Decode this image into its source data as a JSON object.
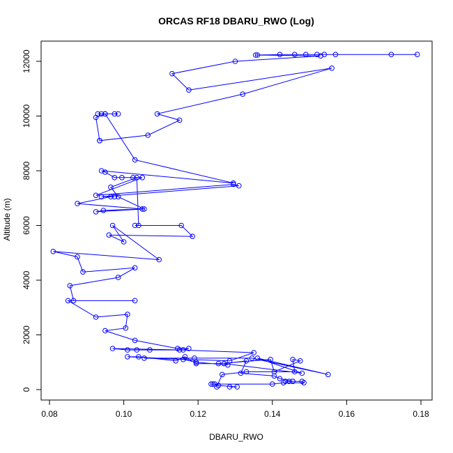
{
  "chart_data": {
    "type": "line",
    "title": "ORCAS RF18 DBARU_RWO (Log)",
    "xlabel": "DBARU_RWO",
    "ylabel": "Altitude (m)",
    "xlim": [
      0.08,
      0.18
    ],
    "ylim": [
      0,
      12000
    ],
    "x_ticks": [
      0.08,
      0.1,
      0.12,
      0.14,
      0.16,
      0.18
    ],
    "x_tick_labels": [
      "0.08",
      "0.10",
      "0.12",
      "0.14",
      "0.16",
      "0.18"
    ],
    "y_ticks": [
      0,
      2000,
      4000,
      6000,
      8000,
      10000,
      12000
    ],
    "y_tick_labels": [
      "0",
      "2000",
      "4000",
      "6000",
      "8000",
      "10000",
      "12000"
    ],
    "grid": false,
    "legend": "none",
    "series": [
      {
        "color": "#0000ff",
        "marker": "open-circle",
        "x": [
          0.179,
          0.172,
          0.157,
          0.154,
          0.152,
          0.149,
          0.146,
          0.142,
          0.136,
          0.1355,
          0.153,
          0.13,
          0.113,
          0.1175,
          0.156,
          0.132,
          0.109,
          0.115,
          0.1065,
          0.0935,
          0.0935,
          0.0925,
          0.095,
          0.0985,
          0.0975,
          0.093,
          0.094,
          0.095,
          0.103,
          0.1295,
          0.094,
          0.095,
          0.0975,
          0.0995,
          0.1025,
          0.105,
          0.0925,
          0.1295,
          0.131,
          0.094,
          0.0975,
          0.0965,
          0.0875,
          0.105,
          0.0945,
          0.0925,
          0.1055,
          0.0985,
          0.0965,
          0.1035,
          0.104,
          0.103,
          0.1155,
          0.1185,
          0.096,
          0.1,
          0.097,
          0.1095,
          0.081,
          0.0875,
          0.089,
          0.103,
          0.0985,
          0.0855,
          0.0865,
          0.103,
          0.085,
          0.0925,
          0.101,
          0.1005,
          0.095,
          0.103,
          0.1145,
          0.1175,
          0.116,
          0.097,
          0.101,
          0.107,
          0.1035,
          0.115,
          0.135,
          0.1285,
          0.1055,
          0.119,
          0.1345,
          0.155,
          0.136,
          0.148,
          0.127,
          0.133,
          0.1315,
          0.1405,
          0.142,
          0.1455,
          0.1455,
          0.1435,
          0.1445,
          0.148,
          0.1485,
          0.143,
          0.14,
          0.124,
          0.1235,
          0.1245,
          0.1255,
          0.1305,
          0.1285
        ]
      },
      {
        "color": "#0000ff",
        "marker": "open-circle",
        "x": [
          0.125,
          0.1265,
          0.133,
          0.146,
          0.1455,
          0.1475,
          0.1405,
          0.1395,
          0.1255,
          0.1195,
          0.1165,
          0.114,
          0.104,
          0.101,
          0.116,
          0.1195,
          0.128
        ]
      }
    ],
    "y_values": [
      [
        12250,
        12250,
        12250,
        12250,
        12250,
        12250,
        12250,
        12250,
        12230,
        12230,
        12200,
        12000,
        11550,
        10950,
        11750,
        10800,
        10080,
        9850,
        9300,
        9100,
        9100,
        9950,
        10080,
        10080,
        10080,
        10080,
        10080,
        10080,
        8400,
        7550,
        8000,
        7950,
        7750,
        7750,
        7750,
        7750,
        7100,
        7500,
        7450,
        7050,
        7050,
        7050,
        6800,
        6600,
        6550,
        6500,
        6600,
        7050,
        7400,
        7750,
        6000,
        6000,
        6000,
        5600,
        5650,
        5400,
        6000,
        4750,
        5050,
        4850,
        4300,
        4450,
        4100,
        3800,
        3250,
        3250,
        3250,
        2650,
        2750,
        2250,
        2150,
        1800,
        1500,
        1500,
        1450,
        1500,
        1450,
        1450,
        1450,
        1450,
        1350,
        1050,
        1150,
        1150,
        1150,
        550,
        1150,
        600,
        950,
        1050,
        600,
        500,
        400,
        300,
        300,
        300,
        300,
        300,
        250,
        250,
        200,
        200,
        200,
        200,
        150,
        100,
        100
      ],
      [
        100,
        550,
        650,
        650,
        1100,
        1050,
        650,
        1100,
        950,
        950,
        1200,
        1050,
        1200,
        1200,
        1100,
        1000,
        900
      ]
    ]
  }
}
